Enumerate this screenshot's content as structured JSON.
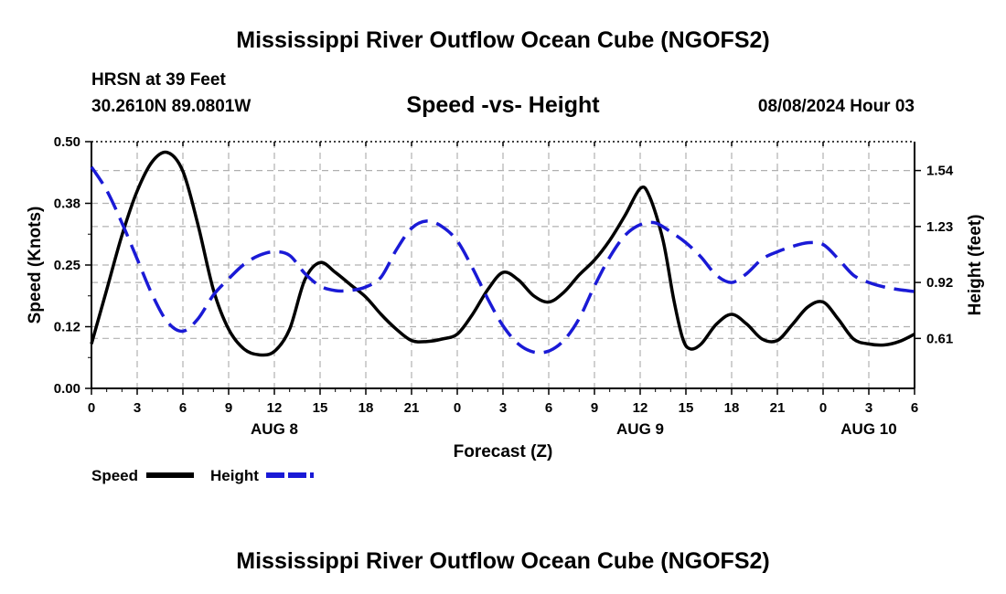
{
  "page": {
    "title": "Mississippi River Outflow Ocean Cube (NGOFS2)",
    "station": "HRSN at 39 Feet",
    "coords": "30.2610N  89.0801W",
    "datetime": "08/08/2024 Hour 03",
    "footer_title": "Mississippi River Outflow Ocean Cube (NGOFS2)"
  },
  "colors": {
    "speed": "#000000",
    "height": "#1a1ad6",
    "grid": "#b0b0b0"
  },
  "chart_data": {
    "type": "line",
    "title": "Speed -vs- Height",
    "xlabel": "Forecast (Z)",
    "ylabel_left": "Speed (Knots)",
    "ylabel_right": "Height (feet)",
    "x_range": [
      0,
      54
    ],
    "y_left_range": [
      0,
      0.5
    ],
    "y_right_range": [
      0.3333,
      1.7
    ],
    "x_ticks": [
      {
        "x": 0,
        "label": "0"
      },
      {
        "x": 3,
        "label": "3"
      },
      {
        "x": 6,
        "label": "6"
      },
      {
        "x": 9,
        "label": "9"
      },
      {
        "x": 12,
        "label": "12"
      },
      {
        "x": 15,
        "label": "15"
      },
      {
        "x": 18,
        "label": "18"
      },
      {
        "x": 21,
        "label": "21"
      },
      {
        "x": 24,
        "label": "0"
      },
      {
        "x": 27,
        "label": "3"
      },
      {
        "x": 30,
        "label": "6"
      },
      {
        "x": 33,
        "label": "9"
      },
      {
        "x": 36,
        "label": "12"
      },
      {
        "x": 39,
        "label": "15"
      },
      {
        "x": 42,
        "label": "18"
      },
      {
        "x": 45,
        "label": "21"
      },
      {
        "x": 48,
        "label": "0"
      },
      {
        "x": 51,
        "label": "3"
      },
      {
        "x": 54,
        "label": "6"
      }
    ],
    "date_labels": [
      {
        "x": 12,
        "label": "AUG 8"
      },
      {
        "x": 36,
        "label": "AUG 9"
      },
      {
        "x": 51,
        "label": "AUG 10"
      }
    ],
    "y_left_ticks": [
      {
        "v": 0.0,
        "label": "0.00"
      },
      {
        "v": 0.125,
        "label": "0.12"
      },
      {
        "v": 0.25,
        "label": "0.25"
      },
      {
        "v": 0.375,
        "label": "0.38"
      },
      {
        "v": 0.5,
        "label": "0.50"
      }
    ],
    "y_right_ticks": [
      {
        "v": 0.61,
        "label": "0.61"
      },
      {
        "v": 0.92,
        "label": "0.92"
      },
      {
        "v": 1.23,
        "label": "1.23"
      },
      {
        "v": 1.54,
        "label": "1.54"
      }
    ],
    "series": [
      {
        "name": "Speed",
        "axis": "left",
        "style": "solid",
        "points": [
          [
            0,
            0.09
          ],
          [
            1,
            0.2
          ],
          [
            2,
            0.31
          ],
          [
            3,
            0.4
          ],
          [
            4,
            0.46
          ],
          [
            5,
            0.478
          ],
          [
            6,
            0.44
          ],
          [
            7,
            0.33
          ],
          [
            8,
            0.2
          ],
          [
            9,
            0.12
          ],
          [
            10,
            0.08
          ],
          [
            11,
            0.068
          ],
          [
            12,
            0.075
          ],
          [
            13,
            0.12
          ],
          [
            14,
            0.22
          ],
          [
            15,
            0.255
          ],
          [
            16,
            0.235
          ],
          [
            17,
            0.21
          ],
          [
            18,
            0.185
          ],
          [
            19,
            0.15
          ],
          [
            20,
            0.12
          ],
          [
            21,
            0.097
          ],
          [
            22,
            0.095
          ],
          [
            23,
            0.1
          ],
          [
            24,
            0.11
          ],
          [
            25,
            0.15
          ],
          [
            26,
            0.2
          ],
          [
            27,
            0.235
          ],
          [
            28,
            0.22
          ],
          [
            29,
            0.188
          ],
          [
            30,
            0.175
          ],
          [
            31,
            0.195
          ],
          [
            32,
            0.23
          ],
          [
            33,
            0.26
          ],
          [
            34,
            0.3
          ],
          [
            35,
            0.35
          ],
          [
            36,
            0.405
          ],
          [
            36.6,
            0.39
          ],
          [
            37.5,
            0.3
          ],
          [
            38.2,
            0.18
          ],
          [
            38.8,
            0.1
          ],
          [
            39.3,
            0.08
          ],
          [
            40,
            0.09
          ],
          [
            41,
            0.13
          ],
          [
            42,
            0.15
          ],
          [
            43,
            0.13
          ],
          [
            44,
            0.1
          ],
          [
            45,
            0.097
          ],
          [
            46,
            0.13
          ],
          [
            47,
            0.165
          ],
          [
            48,
            0.175
          ],
          [
            49,
            0.14
          ],
          [
            50,
            0.1
          ],
          [
            51,
            0.09
          ],
          [
            52,
            0.088
          ],
          [
            53,
            0.095
          ],
          [
            54,
            0.11
          ]
        ]
      },
      {
        "name": "Height",
        "axis": "right",
        "style": "dashed",
        "points": [
          [
            0,
            1.56
          ],
          [
            1,
            1.43
          ],
          [
            2,
            1.25
          ],
          [
            3,
            1.05
          ],
          [
            4,
            0.85
          ],
          [
            5,
            0.7
          ],
          [
            6,
            0.65
          ],
          [
            7,
            0.72
          ],
          [
            8,
            0.85
          ],
          [
            9,
            0.94
          ],
          [
            10,
            1.02
          ],
          [
            11,
            1.07
          ],
          [
            12,
            1.09
          ],
          [
            13,
            1.07
          ],
          [
            14,
            0.97
          ],
          [
            15,
            0.9
          ],
          [
            16,
            0.875
          ],
          [
            17,
            0.876
          ],
          [
            18,
            0.895
          ],
          [
            19,
            0.95
          ],
          [
            20,
            1.1
          ],
          [
            21,
            1.22
          ],
          [
            22,
            1.26
          ],
          [
            23,
            1.23
          ],
          [
            24,
            1.15
          ],
          [
            25,
            1.0
          ],
          [
            26,
            0.83
          ],
          [
            27,
            0.68
          ],
          [
            28,
            0.58
          ],
          [
            29,
            0.535
          ],
          [
            30,
            0.54
          ],
          [
            31,
            0.6
          ],
          [
            32,
            0.72
          ],
          [
            33,
            0.9
          ],
          [
            34,
            1.06
          ],
          [
            35,
            1.18
          ],
          [
            36,
            1.24
          ],
          [
            37,
            1.25
          ],
          [
            38,
            1.2
          ],
          [
            39,
            1.14
          ],
          [
            40,
            1.06
          ],
          [
            41,
            0.96
          ],
          [
            42,
            0.92
          ],
          [
            43,
            0.97
          ],
          [
            44,
            1.05
          ],
          [
            45,
            1.09
          ],
          [
            46,
            1.12
          ],
          [
            47,
            1.14
          ],
          [
            48,
            1.13
          ],
          [
            49,
            1.05
          ],
          [
            50,
            0.96
          ],
          [
            51,
            0.92
          ],
          [
            52,
            0.895
          ],
          [
            53,
            0.88
          ],
          [
            54,
            0.87
          ]
        ]
      }
    ],
    "legend": [
      {
        "label": "Speed",
        "style": "solid"
      },
      {
        "label": "Height",
        "style": "dashed"
      }
    ]
  }
}
